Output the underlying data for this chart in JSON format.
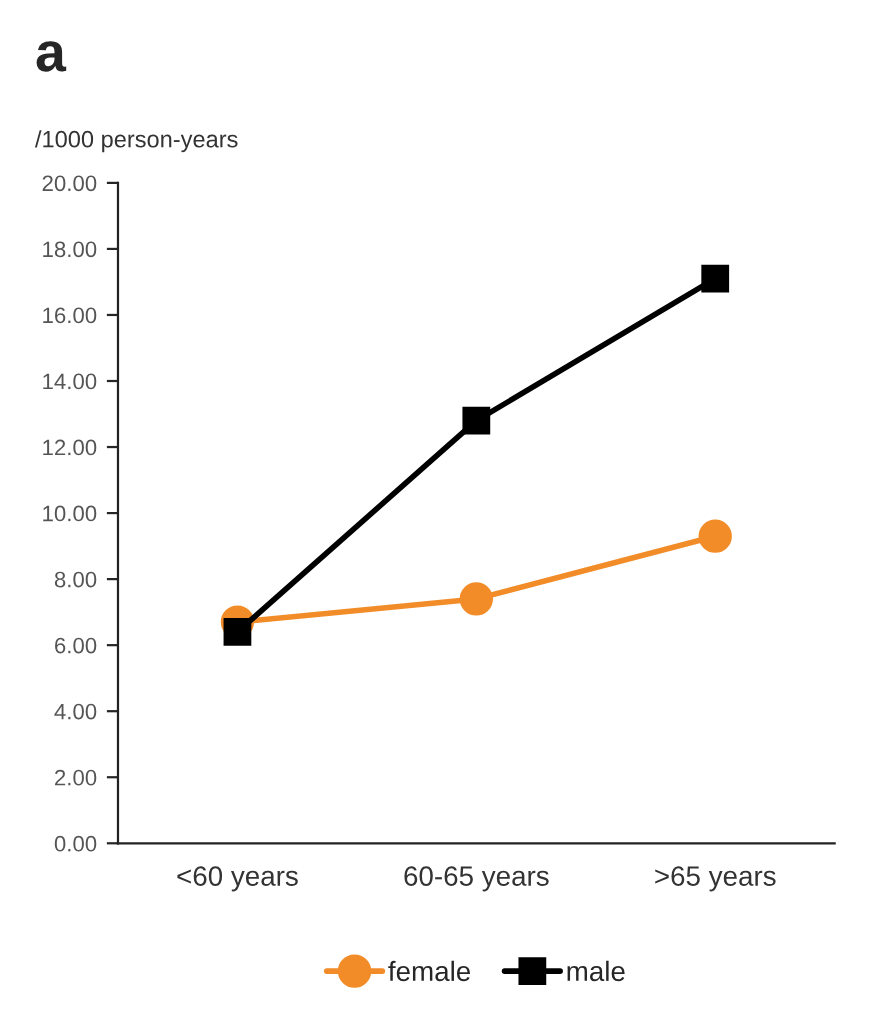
{
  "chart_data": {
    "type": "line",
    "title": "a",
    "ylabel": "/1000 person-years",
    "categories": [
      "<60 years",
      "60-65 years",
      ">65 years"
    ],
    "series": [
      {
        "name": "female",
        "color": "#f28c28",
        "marker": "circle",
        "values": [
          6.7,
          7.4,
          9.3
        ]
      },
      {
        "name": "male",
        "color": "#000000",
        "marker": "square",
        "values": [
          6.4,
          12.8,
          17.1
        ]
      }
    ],
    "ylim": [
      0,
      20
    ],
    "yticks": [
      {
        "value": 0,
        "label": "0.00"
      },
      {
        "value": 2,
        "label": "2.00"
      },
      {
        "value": 4,
        "label": "4.00"
      },
      {
        "value": 6,
        "label": "6.00"
      },
      {
        "value": 8,
        "label": "8.00"
      },
      {
        "value": 10,
        "label": "10.00"
      },
      {
        "value": 12,
        "label": "12.00"
      },
      {
        "value": 14,
        "label": "14.00"
      },
      {
        "value": 16,
        "label": "16.00"
      },
      {
        "value": 18,
        "label": "18.00"
      },
      {
        "value": 20,
        "label": "20.00"
      }
    ],
    "grid": false,
    "legend": "bottom",
    "line_style": "solid"
  }
}
